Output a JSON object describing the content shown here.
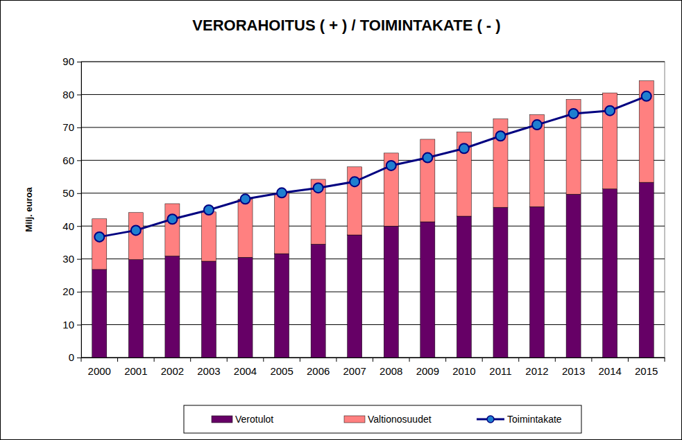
{
  "chart_data": {
    "type": "bar",
    "title": "VERORAHOITUS ( + ) / TOIMINTAKATE ( - )",
    "y_label": "Milj. euroa",
    "categories": [
      "2000",
      "2001",
      "2002",
      "2003",
      "2004",
      "2005",
      "2006",
      "2007",
      "2008",
      "2009",
      "2010",
      "2011",
      "2012",
      "2013",
      "2014",
      "2015"
    ],
    "stacked": true,
    "grid": true,
    "legend": "bottom",
    "ylim": [
      0,
      90
    ],
    "yticks": [
      0,
      10,
      20,
      30,
      40,
      50,
      60,
      70,
      80,
      90
    ],
    "series": [
      {
        "name": "Verotulot",
        "type": "bar",
        "color": "#660066",
        "values": [
          26.8,
          29.8,
          30.9,
          29.3,
          30.5,
          31.6,
          34.5,
          37.3,
          40.0,
          41.3,
          43.0,
          45.7,
          45.9,
          49.7,
          51.3,
          53.3
        ]
      },
      {
        "name": "Valtionosuudet",
        "type": "bar",
        "color": "#FF8080",
        "values": [
          15.4,
          14.3,
          15.9,
          15.0,
          17.7,
          18.5,
          19.7,
          20.7,
          22.2,
          25.1,
          25.6,
          26.9,
          28.0,
          28.8,
          29.2,
          30.9
        ]
      },
      {
        "name": "Toimintakate",
        "type": "line",
        "color": "#000080",
        "marker": "circle",
        "values": [
          36.7,
          38.7,
          42.1,
          44.9,
          48.2,
          50.1,
          51.6,
          53.5,
          58.4,
          60.8,
          63.6,
          67.4,
          70.8,
          74.2,
          75.1,
          79.5
        ]
      }
    ]
  }
}
